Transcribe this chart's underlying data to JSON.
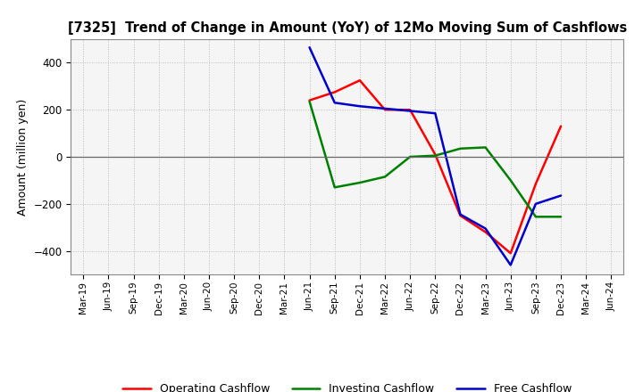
{
  "title": "[7325]  Trend of Change in Amount (YoY) of 12Mo Moving Sum of Cashflows",
  "ylabel": "Amount (million yen)",
  "x_labels": [
    "Mar-19",
    "Jun-19",
    "Sep-19",
    "Dec-19",
    "Mar-20",
    "Jun-20",
    "Sep-20",
    "Dec-20",
    "Mar-21",
    "Jun-21",
    "Sep-21",
    "Dec-21",
    "Mar-22",
    "Jun-22",
    "Sep-22",
    "Dec-22",
    "Mar-23",
    "Jun-23",
    "Sep-23",
    "Dec-23",
    "Mar-24",
    "Jun-24"
  ],
  "operating": [
    null,
    null,
    null,
    null,
    null,
    null,
    null,
    null,
    null,
    240,
    275,
    325,
    200,
    200,
    10,
    -250,
    -320,
    -410,
    -115,
    130,
    null,
    null
  ],
  "investing": [
    null,
    null,
    null,
    null,
    null,
    null,
    null,
    null,
    null,
    235,
    -130,
    -110,
    -85,
    0,
    5,
    35,
    40,
    -100,
    -255,
    -255,
    null,
    null
  ],
  "free": [
    null,
    null,
    null,
    null,
    null,
    null,
    null,
    null,
    null,
    465,
    230,
    215,
    205,
    195,
    185,
    -245,
    -305,
    -460,
    -200,
    -165,
    null,
    null
  ],
  "ylim": [
    -500,
    500
  ],
  "yticks": [
    -400,
    -200,
    0,
    200,
    400
  ],
  "operating_color": "#ff0000",
  "investing_color": "#008000",
  "free_color": "#0000cd",
  "line_width": 1.8,
  "bg_color": "#ffffff",
  "grid_color": "#bbbbbb",
  "plot_bg_color": "#f5f5f5"
}
